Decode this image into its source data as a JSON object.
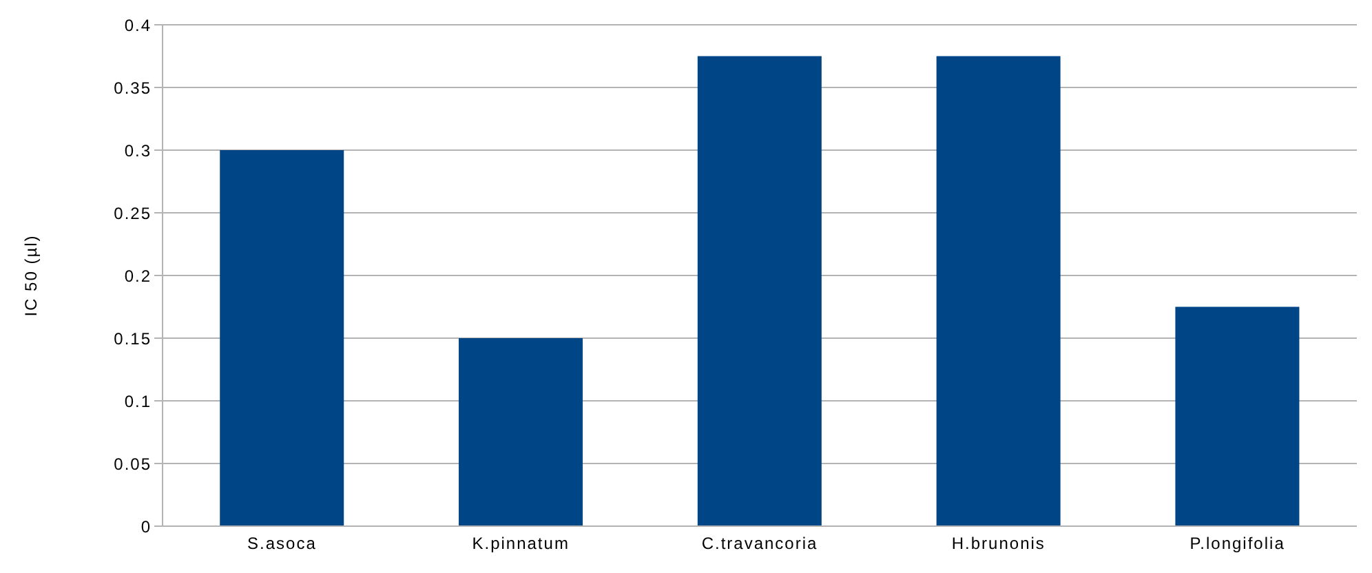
{
  "chart_data": {
    "type": "bar",
    "ylabel": "IC 50 (µl)",
    "categories": [
      "S.asoca",
      "K.pinnatum",
      "C.travancoria",
      "H.brunonis",
      "P.longifolia"
    ],
    "values": [
      0.3,
      0.15,
      0.375,
      0.375,
      0.175
    ],
    "color": "#004586",
    "ylim": [
      0,
      0.4
    ],
    "yticks": [
      0,
      0.05,
      0.1,
      0.15,
      0.2,
      0.25,
      0.3,
      0.35,
      0.4
    ],
    "grid": "y"
  }
}
